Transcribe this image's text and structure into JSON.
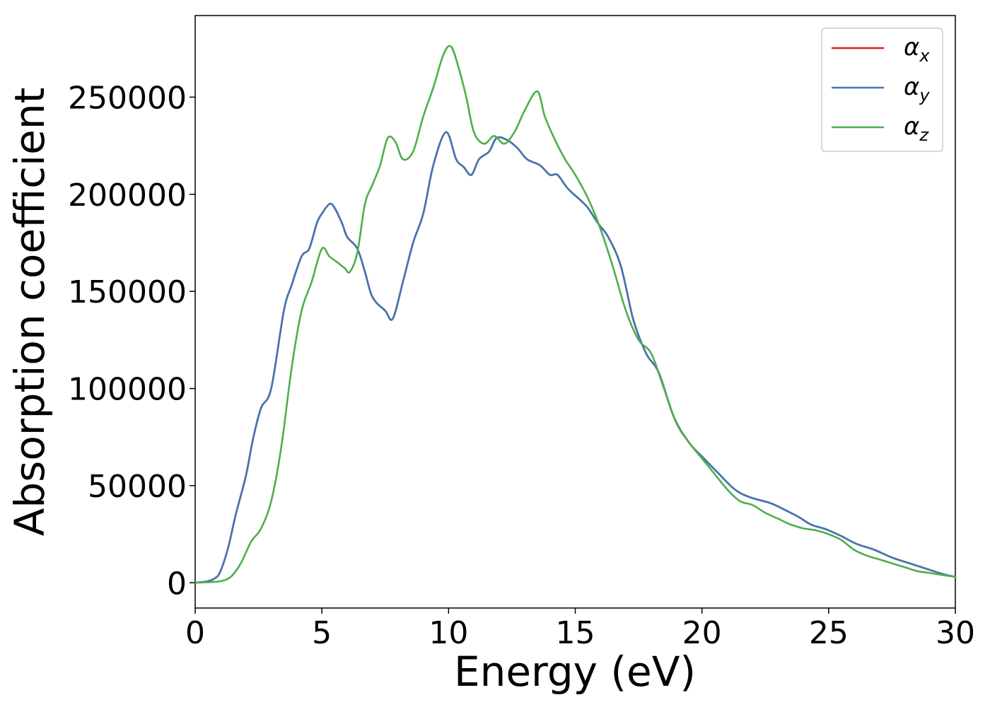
{
  "chart_data": {
    "type": "line",
    "xlabel": "Energy (eV)",
    "ylabel": "Absorption coefficient",
    "xlim": [
      0,
      30
    ],
    "ylim": [
      -13000,
      292000
    ],
    "grid": false,
    "legend_placement": "top-right",
    "x_ticks": [
      0,
      5,
      10,
      15,
      20,
      25,
      30
    ],
    "x_tick_labels": [
      "0",
      "5",
      "10",
      "15",
      "20",
      "25",
      "30"
    ],
    "y_ticks": [
      0,
      50000,
      100000,
      150000,
      200000,
      250000
    ],
    "y_tick_labels": [
      "0",
      "50000",
      "100000",
      "150000",
      "200000",
      "250000"
    ],
    "series": [
      {
        "name": "α",
        "subscript": "x",
        "color": "#e41a1c",
        "x": [
          0,
          0.5,
          0.8,
          1.0,
          1.3,
          1.6,
          2.0,
          2.3,
          2.6,
          3.0,
          3.5,
          3.8,
          4.2,
          4.5,
          4.8,
          5.0,
          5.3,
          5.5,
          5.8,
          6.0,
          6.4,
          6.7,
          7.0,
          7.5,
          7.8,
          8.2,
          8.6,
          9.0,
          9.4,
          9.9,
          10.3,
          10.6,
          10.9,
          11.2,
          11.6,
          11.9,
          12.3,
          12.7,
          13.1,
          13.6,
          14.0,
          14.3,
          14.7,
          15.2,
          15.5,
          15.9,
          16.3,
          16.8,
          17.3,
          17.8,
          18.3,
          18.9,
          19.5,
          20.0,
          20.6,
          21.3,
          21.9,
          22.7,
          23.2,
          23.8,
          24.3,
          24.9,
          25.5,
          26.1,
          26.8,
          27.5,
          28.2,
          28.9,
          29.5,
          30.0
        ],
        "y": [
          0,
          800,
          2500,
          6000,
          18000,
          35000,
          55000,
          75000,
          90000,
          100000,
          140000,
          153000,
          168000,
          172000,
          185000,
          190000,
          195000,
          193000,
          185000,
          178000,
          172000,
          160000,
          147000,
          140000,
          136000,
          155000,
          175000,
          190000,
          215000,
          232000,
          218000,
          214000,
          210000,
          218000,
          222000,
          229000,
          228000,
          224000,
          218000,
          215000,
          210000,
          210000,
          203000,
          197000,
          193000,
          185000,
          178000,
          163000,
          135000,
          118000,
          108000,
          85000,
          72000,
          65000,
          57000,
          48000,
          44000,
          41000,
          38000,
          34000,
          30000,
          27500,
          24000,
          20000,
          17000,
          13000,
          10000,
          7000,
          4500,
          3000
        ]
      },
      {
        "name": "α",
        "subscript": "y",
        "color": "#3f77b3",
        "x": [
          0,
          0.5,
          0.8,
          1.0,
          1.3,
          1.6,
          2.0,
          2.3,
          2.6,
          3.0,
          3.5,
          3.8,
          4.2,
          4.5,
          4.8,
          5.0,
          5.3,
          5.5,
          5.8,
          6.0,
          6.4,
          6.7,
          7.0,
          7.5,
          7.8,
          8.2,
          8.6,
          9.0,
          9.4,
          9.9,
          10.3,
          10.6,
          10.9,
          11.2,
          11.6,
          11.9,
          12.3,
          12.7,
          13.1,
          13.6,
          14.0,
          14.3,
          14.7,
          15.2,
          15.5,
          15.9,
          16.3,
          16.8,
          17.3,
          17.8,
          18.3,
          18.9,
          19.5,
          20.0,
          20.6,
          21.3,
          21.9,
          22.7,
          23.2,
          23.8,
          24.3,
          24.9,
          25.5,
          26.1,
          26.8,
          27.5,
          28.2,
          28.9,
          29.5,
          30.0
        ],
        "y": [
          0,
          800,
          2500,
          6000,
          18000,
          35000,
          55000,
          75000,
          90000,
          100000,
          140000,
          153000,
          168000,
          172000,
          185000,
          190000,
          195000,
          193000,
          185000,
          178000,
          172000,
          160000,
          147000,
          140000,
          136000,
          155000,
          175000,
          190000,
          215000,
          232000,
          218000,
          214000,
          210000,
          218000,
          222000,
          229000,
          228000,
          224000,
          218000,
          215000,
          210000,
          210000,
          203000,
          197000,
          193000,
          185000,
          178000,
          163000,
          135000,
          118000,
          108000,
          85000,
          72000,
          65000,
          57000,
          48000,
          44000,
          41000,
          38000,
          34000,
          30000,
          27500,
          24000,
          20000,
          17000,
          13000,
          10000,
          7000,
          4500,
          3000
        ]
      },
      {
        "name": "α",
        "subscript": "z",
        "color": "#4daf4a",
        "x": [
          0,
          0.5,
          1.0,
          1.4,
          1.8,
          2.2,
          2.6,
          3.0,
          3.4,
          3.8,
          4.2,
          4.6,
          5.0,
          5.3,
          5.6,
          5.9,
          6.1,
          6.4,
          6.7,
          7.0,
          7.3,
          7.6,
          7.9,
          8.2,
          8.6,
          9.0,
          9.4,
          9.8,
          10.1,
          10.4,
          10.7,
          11.0,
          11.4,
          11.8,
          12.2,
          12.6,
          13.0,
          13.5,
          13.8,
          14.2,
          14.6,
          15.0,
          15.5,
          16.0,
          16.5,
          17.0,
          17.5,
          18.0,
          18.5,
          19.0,
          19.5,
          20.0,
          20.5,
          21.0,
          21.5,
          22.0,
          22.5,
          23.0,
          23.5,
          24.0,
          24.5,
          25.0,
          25.5,
          26.0,
          26.5,
          27.0,
          27.5,
          28.0,
          28.5,
          29.0,
          29.5,
          30.0
        ],
        "y": [
          0,
          300,
          800,
          3000,
          10000,
          21000,
          28000,
          42000,
          70000,
          110000,
          140000,
          155000,
          172000,
          168000,
          165000,
          162000,
          160000,
          170000,
          195000,
          205000,
          215000,
          229000,
          227000,
          218000,
          222000,
          240000,
          255000,
          272000,
          276000,
          265000,
          250000,
          232000,
          226000,
          230000,
          226000,
          232000,
          243000,
          253000,
          240000,
          228000,
          218000,
          210000,
          198000,
          182000,
          162000,
          140000,
          125000,
          118000,
          100000,
          82000,
          72000,
          64000,
          56000,
          48000,
          42000,
          40000,
          36000,
          33000,
          30000,
          28000,
          27000,
          25000,
          22000,
          17000,
          14000,
          12000,
          10000,
          8000,
          6000,
          5000,
          4000,
          3000
        ]
      }
    ]
  }
}
